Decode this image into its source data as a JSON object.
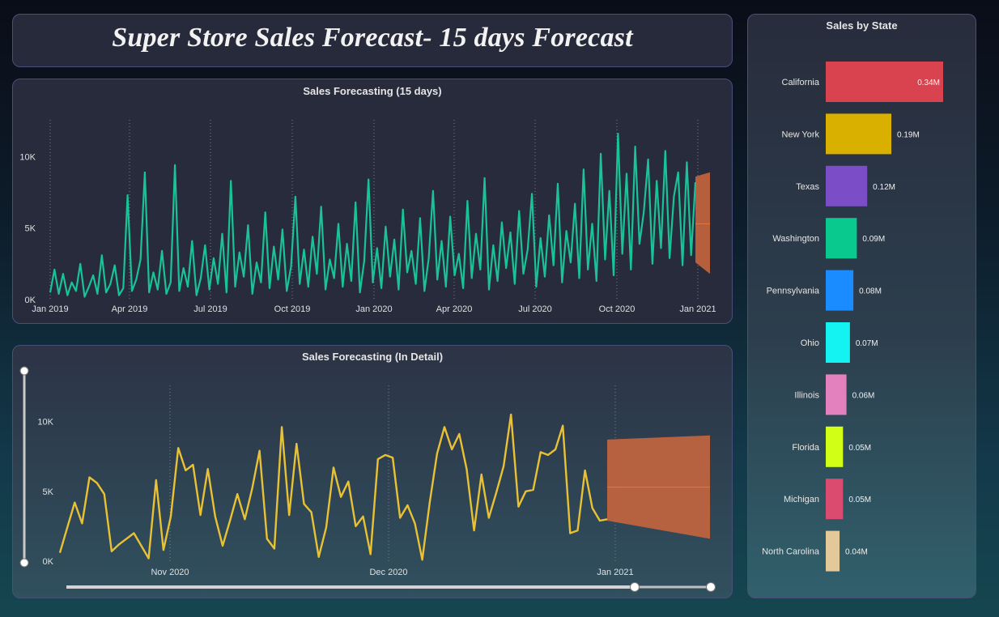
{
  "title": "Super Store Sales Forecast- 15 days Forecast",
  "colors": {
    "line_main": "#19c397",
    "line_detail": "#e8c234",
    "forecast_band": "#c2643e",
    "forecast_line": "#e07a3c",
    "text": "#e6e6e6"
  },
  "chart_data": [
    {
      "type": "line",
      "title": "Sales Forecasting (15 days)",
      "x_ticks": [
        "Jan 2019",
        "Apr 2019",
        "Jul 2019",
        "Oct 2019",
        "Jan 2020",
        "Apr 2020",
        "Jul 2020",
        "Oct 2020",
        "Jan 2021"
      ],
      "y_ticks": [
        "0K",
        "5K",
        "10K"
      ],
      "ylim": [
        0,
        12000
      ],
      "x_range": [
        "2019-01-01",
        "2021-01-15"
      ],
      "series": [
        {
          "sample": "approximate daily sales (K) — dense daily line from Jan 2019 to Dec 2020",
          "values": [
            0.5,
            2.1,
            0.4,
            1.8,
            0.3,
            1.2,
            0.6,
            2.5,
            0.2,
            0.9,
            1.7,
            0.4,
            3.1,
            0.5,
            1.1,
            2.4,
            0.3,
            0.8,
            7.3,
            0.6,
            1.4,
            2.8,
            8.9,
            0.5,
            1.9,
            0.7,
            3.4,
            0.4,
            1.2,
            9.4,
            0.6,
            2.2,
            0.9,
            4.1,
            0.3,
            1.5,
            3.8,
            0.7,
            2.9,
            1.1,
            4.6,
            0.5,
            8.3,
            0.9,
            3.3,
            1.6,
            5.2,
            0.4,
            2.6,
            1.2,
            6.1,
            0.8,
            3.7,
            1.4,
            4.9,
            0.6,
            2.3,
            7.2,
            1.1,
            3.5,
            0.9,
            4.4,
            1.8,
            6.5,
            0.7,
            2.8,
            1.5,
            5.3,
            0.9,
            3.9,
            1.3,
            6.8,
            0.5,
            2.7,
            8.4,
            1.2,
            3.6,
            0.8,
            5.1,
            1.6,
            4.2,
            0.7,
            6.3,
            1.9,
            3.4,
            1.1,
            5.7,
            0.6,
            2.9,
            7.6,
            1.4,
            4.1,
            0.9,
            5.8,
            1.7,
            3.2,
            0.8,
            6.9,
            1.5,
            4.6,
            2.1,
            8.5,
            0.7,
            3.8,
            1.3,
            5.4,
            2.2,
            4.7,
            1.1,
            6.2,
            1.8,
            3.5,
            7.4,
            0.9,
            4.3,
            1.6,
            5.9,
            2.4,
            8.1,
            1.2,
            4.8,
            2.6,
            6.7,
            1.5,
            9.1,
            2.1,
            5.3,
            1.3,
            10.2,
            2.8,
            7.6,
            1.7,
            11.6,
            3.2,
            8.8,
            2.1,
            10.7,
            3.9,
            6.1,
            9.8,
            2.5,
            8.3,
            3.6,
            10.4,
            2.9,
            7.2,
            8.9,
            2.4,
            9.6,
            3.1,
            8.2
          ]
        }
      ],
      "forecast": {
        "low_start": 2.6,
        "low_end": 1.8,
        "high_start": 8.6,
        "high_end": 8.9,
        "mid": 5.3
      }
    },
    {
      "type": "line",
      "title": "Sales Forecasting (In Detail)",
      "x_ticks": [
        "Nov 2020",
        "Dec 2020",
        "Jan 2021"
      ],
      "y_ticks": [
        "0K",
        "5K",
        "10K"
      ],
      "ylim": [
        0,
        12000
      ],
      "series": [
        {
          "values": [
            0.6,
            2.4,
            4.2,
            2.7,
            6.0,
            5.6,
            4.8,
            0.7,
            1.2,
            1.6,
            2.0,
            1.1,
            0.2,
            5.8,
            0.8,
            3.2,
            8.1,
            6.5,
            6.9,
            3.3,
            6.6,
            3.2,
            1.1,
            2.9,
            4.8,
            3.0,
            5.2,
            7.9,
            1.6,
            0.9,
            9.6,
            3.3,
            8.4,
            4.1,
            3.5,
            0.3,
            2.4,
            6.7,
            4.6,
            5.7,
            2.5,
            3.2,
            0.5,
            7.3,
            7.6,
            7.4,
            3.1,
            4.0,
            2.7,
            0.1,
            4.2,
            7.7,
            9.6,
            8.0,
            9.1,
            6.6,
            2.2,
            6.2,
            3.1,
            4.9,
            6.8,
            10.5,
            3.9,
            5.0,
            5.1,
            7.8,
            7.6,
            8.0,
            9.7,
            2.0,
            2.2,
            6.5,
            3.8,
            2.9,
            3.0
          ]
        }
      ],
      "forecast": {
        "low_start": 2.9,
        "low_end": 1.6,
        "high_start": 8.7,
        "high_end": 9.0,
        "mid": 5.3
      }
    },
    {
      "type": "bar",
      "orientation": "horizontal",
      "title": "Sales by State",
      "categories": [
        "California",
        "New York",
        "Texas",
        "Washington",
        "Pennsylvania",
        "Ohio",
        "Illinois",
        "Florida",
        "Michigan",
        "North Carolina"
      ],
      "values": [
        0.34,
        0.19,
        0.12,
        0.09,
        0.08,
        0.07,
        0.06,
        0.05,
        0.05,
        0.04
      ],
      "labels": [
        "0.34M",
        "0.19M",
        "0.12M",
        "0.09M",
        "0.08M",
        "0.07M",
        "0.06M",
        "0.05M",
        "0.05M",
        "0.04M"
      ],
      "colors": [
        "#d9434f",
        "#d9b000",
        "#7b4ec7",
        "#09c98f",
        "#1a8cff",
        "#14f2f2",
        "#e281be",
        "#d1ff16",
        "#db4b70",
        "#e3c89a"
      ]
    }
  ]
}
